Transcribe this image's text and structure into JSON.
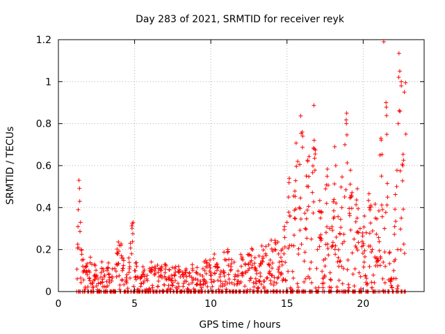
{
  "chart_data": {
    "type": "scatter",
    "title": "Day 283 of 2021, SRMTID for receiver reyk",
    "xlabel": "GPS time / hours",
    "ylabel": "SRMTID / TECUs",
    "xlim": [
      0,
      24
    ],
    "ylim": [
      0,
      1.2
    ],
    "xticks": [
      0,
      5,
      10,
      15,
      20
    ],
    "xtick_labels": [
      "0",
      "5",
      "10",
      "15",
      "20"
    ],
    "yticks": [
      0,
      0.2,
      0.4,
      0.6,
      0.8,
      1.0,
      1.2
    ],
    "ytick_labels": [
      "0",
      "0.2",
      "0.4",
      "0.6",
      "0.8",
      "1",
      "1.2"
    ],
    "grid": true,
    "marker": "+",
    "color": "#ff0000",
    "series": [
      {
        "name": "SRMTID",
        "x": [
          1.2,
          1.3,
          1.35,
          1.4,
          1.45,
          1.5,
          1.55,
          1.6,
          1.7,
          1.8,
          1.9,
          2.0,
          2.2,
          2.4,
          2.6,
          2.8,
          3.0,
          3.2,
          3.5,
          3.7,
          3.9,
          4.0,
          4.2,
          4.5,
          4.8,
          4.9,
          5.0,
          5.2,
          5.5,
          5.8,
          6.0,
          6.3,
          6.6,
          7.0,
          7.3,
          7.6,
          8.0,
          8.3,
          8.6,
          9.0,
          9.3,
          9.6,
          10.0,
          10.3,
          10.6,
          11.0,
          11.3,
          11.6,
          12.0,
          12.3,
          12.6,
          13.0,
          13.3,
          13.6,
          13.9,
          14.2,
          14.5,
          14.8,
          15.0,
          15.1,
          15.3,
          15.5,
          15.7,
          15.8,
          16.0,
          16.2,
          16.4,
          16.6,
          16.8,
          17.0,
          17.2,
          17.4,
          17.6,
          17.8,
          18.0,
          18.2,
          18.4,
          18.6,
          18.8,
          18.9,
          19.0,
          19.2,
          19.4,
          19.6,
          19.8,
          20.0,
          20.2,
          20.4,
          20.6,
          20.8,
          21.0,
          21.1,
          21.2,
          21.4,
          21.5,
          21.6,
          21.8,
          21.9,
          22.0,
          22.2,
          22.3,
          22.4,
          22.5,
          22.6,
          22.7,
          22.8
        ],
        "y": [
          0.0,
          0.39,
          0.53,
          0.43,
          0.33,
          0.2,
          0.15,
          0.12,
          0.1,
          0.09,
          0.08,
          0.1,
          0.13,
          0.08,
          0.06,
          0.09,
          0.07,
          0.1,
          0.05,
          0.11,
          0.18,
          0.22,
          0.1,
          0.08,
          0.18,
          0.33,
          0.1,
          0.07,
          0.08,
          0.06,
          0.1,
          0.08,
          0.07,
          0.09,
          0.06,
          0.08,
          0.07,
          0.05,
          0.09,
          0.06,
          0.08,
          0.1,
          0.09,
          0.12,
          0.07,
          0.15,
          0.1,
          0.08,
          0.12,
          0.09,
          0.14,
          0.1,
          0.13,
          0.18,
          0.15,
          0.2,
          0.14,
          0.18,
          0.33,
          0.45,
          0.22,
          0.35,
          0.62,
          0.4,
          0.76,
          0.3,
          0.5,
          0.25,
          0.68,
          0.2,
          0.35,
          0.15,
          0.42,
          0.3,
          0.22,
          0.6,
          0.12,
          0.4,
          0.7,
          0.8,
          0.15,
          0.45,
          0.25,
          0.35,
          0.3,
          0.22,
          0.28,
          0.4,
          0.2,
          0.35,
          0.15,
          0.65,
          0.55,
          0.3,
          0.9,
          0.45,
          0.05,
          0.02,
          0.1,
          0.5,
          0.8,
          1.05,
          0.35,
          0.6,
          0.95,
          0.75
        ],
        "extra_points": [
          [
            21.35,
            1.19
          ],
          [
            22.5,
            1.0
          ],
          [
            22.5,
            0.98
          ]
        ]
      }
    ]
  }
}
